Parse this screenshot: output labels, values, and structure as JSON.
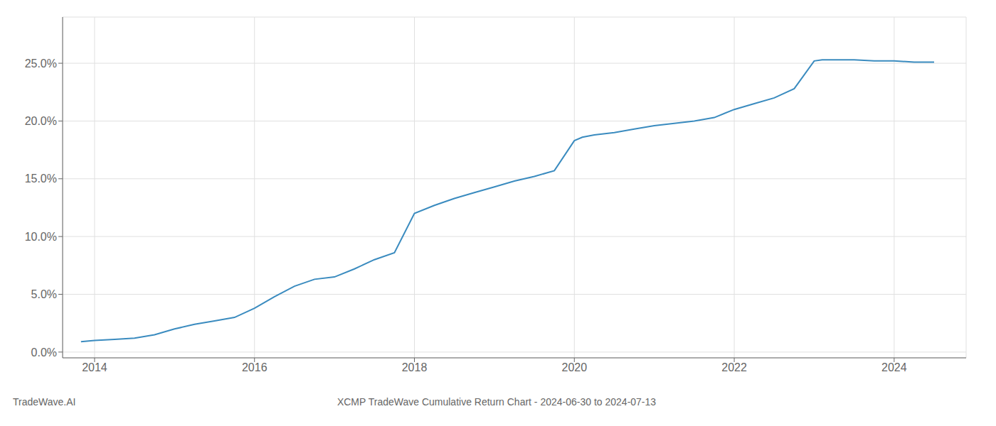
{
  "chart_data": {
    "type": "line",
    "title": "XCMP TradeWave Cumulative Return Chart - 2024-06-30 to 2024-07-13",
    "annotations": [
      "TradeWave.AI"
    ],
    "x": [
      2013.83,
      2014.0,
      2014.25,
      2014.5,
      2014.75,
      2015.0,
      2015.25,
      2015.5,
      2015.75,
      2016.0,
      2016.25,
      2016.5,
      2016.75,
      2017.0,
      2017.25,
      2017.5,
      2017.75,
      2018.0,
      2018.25,
      2018.5,
      2018.75,
      2019.0,
      2019.25,
      2019.5,
      2019.75,
      2020.0,
      2020.1,
      2020.25,
      2020.5,
      2020.75,
      2021.0,
      2021.25,
      2021.5,
      2021.75,
      2022.0,
      2022.25,
      2022.5,
      2022.75,
      2023.0,
      2023.1,
      2023.25,
      2023.5,
      2023.75,
      2024.0,
      2024.25,
      2024.5
    ],
    "values": [
      0.009,
      0.01,
      0.011,
      0.012,
      0.015,
      0.02,
      0.024,
      0.027,
      0.03,
      0.038,
      0.048,
      0.057,
      0.063,
      0.065,
      0.072,
      0.08,
      0.086,
      0.12,
      0.127,
      0.133,
      0.138,
      0.143,
      0.148,
      0.152,
      0.157,
      0.183,
      0.186,
      0.188,
      0.19,
      0.193,
      0.196,
      0.198,
      0.2,
      0.203,
      0.21,
      0.215,
      0.22,
      0.228,
      0.252,
      0.253,
      0.253,
      0.253,
      0.252,
      0.252,
      0.251,
      0.251
    ],
    "color": "#3a8bbf",
    "xlim": [
      2013.6,
      2024.9
    ],
    "ylim": [
      -0.005,
      0.29
    ],
    "xticks": [
      2014,
      2016,
      2018,
      2020,
      2022,
      2024
    ],
    "yticks": [
      {
        "value": 0.0,
        "label": "0.0%"
      },
      {
        "value": 0.05,
        "label": "5.0%"
      },
      {
        "value": 0.1,
        "label": "10.0%"
      },
      {
        "value": 0.15,
        "label": "15.0%"
      },
      {
        "value": 0.2,
        "label": "20.0%"
      },
      {
        "value": 0.25,
        "label": "25.0%"
      }
    ],
    "grid": true
  }
}
